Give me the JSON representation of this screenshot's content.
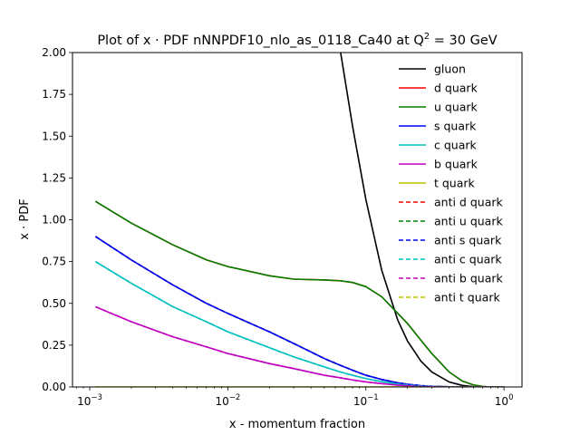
{
  "chart_data": {
    "type": "line",
    "title_prefix": "Plot of x · PDF nNNPDF10_nlo_as_0118_Ca40 at Q",
    "title_sup": "2",
    "title_suffix": " = 30 GeV",
    "xlabel": "x - momentum fraction",
    "ylabel": "x · PDF",
    "xscale": "log",
    "xlim": [
      0.00075,
      1.35
    ],
    "ylim": [
      0,
      2.0
    ],
    "x_ticks": [
      {
        "base": "10",
        "exp": "−3"
      },
      {
        "base": "10",
        "exp": "−2"
      },
      {
        "base": "10",
        "exp": "−1"
      },
      {
        "base": "10",
        "exp": "0"
      }
    ],
    "y_ticks": [
      "0.00",
      "0.25",
      "0.50",
      "0.75",
      "1.00",
      "1.25",
      "1.50",
      "1.75",
      "2.00"
    ],
    "grid": false,
    "legend_position": "upper-right",
    "x": [
      0.0011,
      0.002,
      0.004,
      0.007,
      0.01,
      0.02,
      0.03,
      0.05,
      0.065,
      0.08,
      0.1,
      0.13,
      0.17,
      0.2,
      0.25,
      0.3,
      0.4,
      0.5,
      0.6,
      0.7,
      0.8,
      0.9,
      1.0
    ],
    "series": [
      {
        "name": "gluon",
        "color": "#000000",
        "dash": "solid",
        "values": [
          null,
          null,
          null,
          null,
          null,
          null,
          null,
          null,
          2.02,
          1.56,
          1.12,
          0.7,
          0.4,
          0.275,
          0.155,
          0.09,
          0.03,
          0.009,
          0.002,
          0.0,
          0.0,
          0.0,
          0.0
        ]
      },
      {
        "name": "d quark",
        "color": "#ff0000",
        "dash": "solid",
        "values": [
          1.11,
          0.98,
          0.85,
          0.76,
          0.72,
          0.665,
          0.645,
          0.64,
          0.635,
          0.625,
          0.6,
          0.54,
          0.44,
          0.38,
          0.28,
          0.2,
          0.09,
          0.035,
          0.012,
          0.003,
          0.0,
          0.0,
          0.0
        ]
      },
      {
        "name": "u quark",
        "color": "#008000",
        "dash": "solid",
        "values": [
          1.11,
          0.98,
          0.85,
          0.76,
          0.72,
          0.665,
          0.645,
          0.64,
          0.635,
          0.625,
          0.6,
          0.54,
          0.44,
          0.38,
          0.28,
          0.2,
          0.09,
          0.035,
          0.012,
          0.003,
          0.0,
          0.0,
          0.0
        ]
      },
      {
        "name": "s quark",
        "color": "#0000ff",
        "dash": "solid",
        "values": [
          0.9,
          0.76,
          0.61,
          0.5,
          0.44,
          0.33,
          0.26,
          0.17,
          0.13,
          0.1,
          0.07,
          0.045,
          0.025,
          0.016,
          0.008,
          0.004,
          0.001,
          0.0,
          0.0,
          0.0,
          0.0,
          0.0,
          0.0
        ]
      },
      {
        "name": "c quark",
        "color": "#00bfbf",
        "dash": "solid",
        "values": [
          0.75,
          0.62,
          0.48,
          0.39,
          0.33,
          0.235,
          0.18,
          0.12,
          0.09,
          0.07,
          0.05,
          0.032,
          0.018,
          0.012,
          0.006,
          0.003,
          0.0005,
          0.0,
          0.0,
          0.0,
          0.0,
          0.0,
          0.0
        ]
      },
      {
        "name": "b quark",
        "color": "#bf00bf",
        "dash": "solid",
        "values": [
          0.48,
          0.39,
          0.3,
          0.24,
          0.2,
          0.14,
          0.11,
          0.07,
          0.055,
          0.042,
          0.03,
          0.02,
          0.011,
          0.007,
          0.003,
          0.0015,
          0.0,
          0.0,
          0.0,
          0.0,
          0.0,
          0.0,
          0.0
        ]
      },
      {
        "name": "t quark",
        "color": "#bfbf00",
        "dash": "solid",
        "values": [
          0,
          0,
          0,
          0,
          0,
          0,
          0,
          0,
          0,
          0,
          0,
          0,
          0,
          0,
          0,
          0,
          0,
          0,
          0,
          0,
          0,
          0,
          0
        ]
      },
      {
        "name": "anti d quark",
        "color": "#ff0000",
        "dash": "dashed",
        "values": [
          0.9,
          0.76,
          0.61,
          0.5,
          0.44,
          0.33,
          0.26,
          0.17,
          0.13,
          0.1,
          0.07,
          0.045,
          0.025,
          0.016,
          0.008,
          0.004,
          0.001,
          0.0,
          0.0,
          0.0,
          0.0,
          0.0,
          0.0
        ]
      },
      {
        "name": "anti u quark",
        "color": "#008000",
        "dash": "dashed",
        "values": [
          0.9,
          0.76,
          0.61,
          0.5,
          0.44,
          0.33,
          0.26,
          0.17,
          0.13,
          0.1,
          0.07,
          0.045,
          0.025,
          0.016,
          0.008,
          0.004,
          0.001,
          0.0,
          0.0,
          0.0,
          0.0,
          0.0,
          0.0
        ]
      },
      {
        "name": "anti s quark",
        "color": "#0000ff",
        "dash": "dashed",
        "values": [
          0.9,
          0.76,
          0.61,
          0.5,
          0.44,
          0.33,
          0.26,
          0.17,
          0.13,
          0.1,
          0.07,
          0.045,
          0.025,
          0.016,
          0.008,
          0.004,
          0.001,
          0.0,
          0.0,
          0.0,
          0.0,
          0.0,
          0.0
        ]
      },
      {
        "name": "anti c quark",
        "color": "#00bfbf",
        "dash": "dashed",
        "values": [
          0.75,
          0.62,
          0.48,
          0.39,
          0.33,
          0.235,
          0.18,
          0.12,
          0.09,
          0.07,
          0.05,
          0.032,
          0.018,
          0.012,
          0.006,
          0.003,
          0.0005,
          0.0,
          0.0,
          0.0,
          0.0,
          0.0,
          0.0
        ]
      },
      {
        "name": "anti b quark",
        "color": "#bf00bf",
        "dash": "dashed",
        "values": [
          0.48,
          0.39,
          0.3,
          0.24,
          0.2,
          0.14,
          0.11,
          0.07,
          0.055,
          0.042,
          0.03,
          0.02,
          0.011,
          0.007,
          0.003,
          0.0015,
          0.0,
          0.0,
          0.0,
          0.0,
          0.0,
          0.0,
          0.0
        ]
      },
      {
        "name": "anti t quark",
        "color": "#bfbf00",
        "dash": "dashed",
        "values": [
          0,
          0,
          0,
          0,
          0,
          0,
          0,
          0,
          0,
          0,
          0,
          0,
          0,
          0,
          0,
          0,
          0,
          0,
          0,
          0,
          0,
          0,
          0
        ]
      }
    ]
  }
}
